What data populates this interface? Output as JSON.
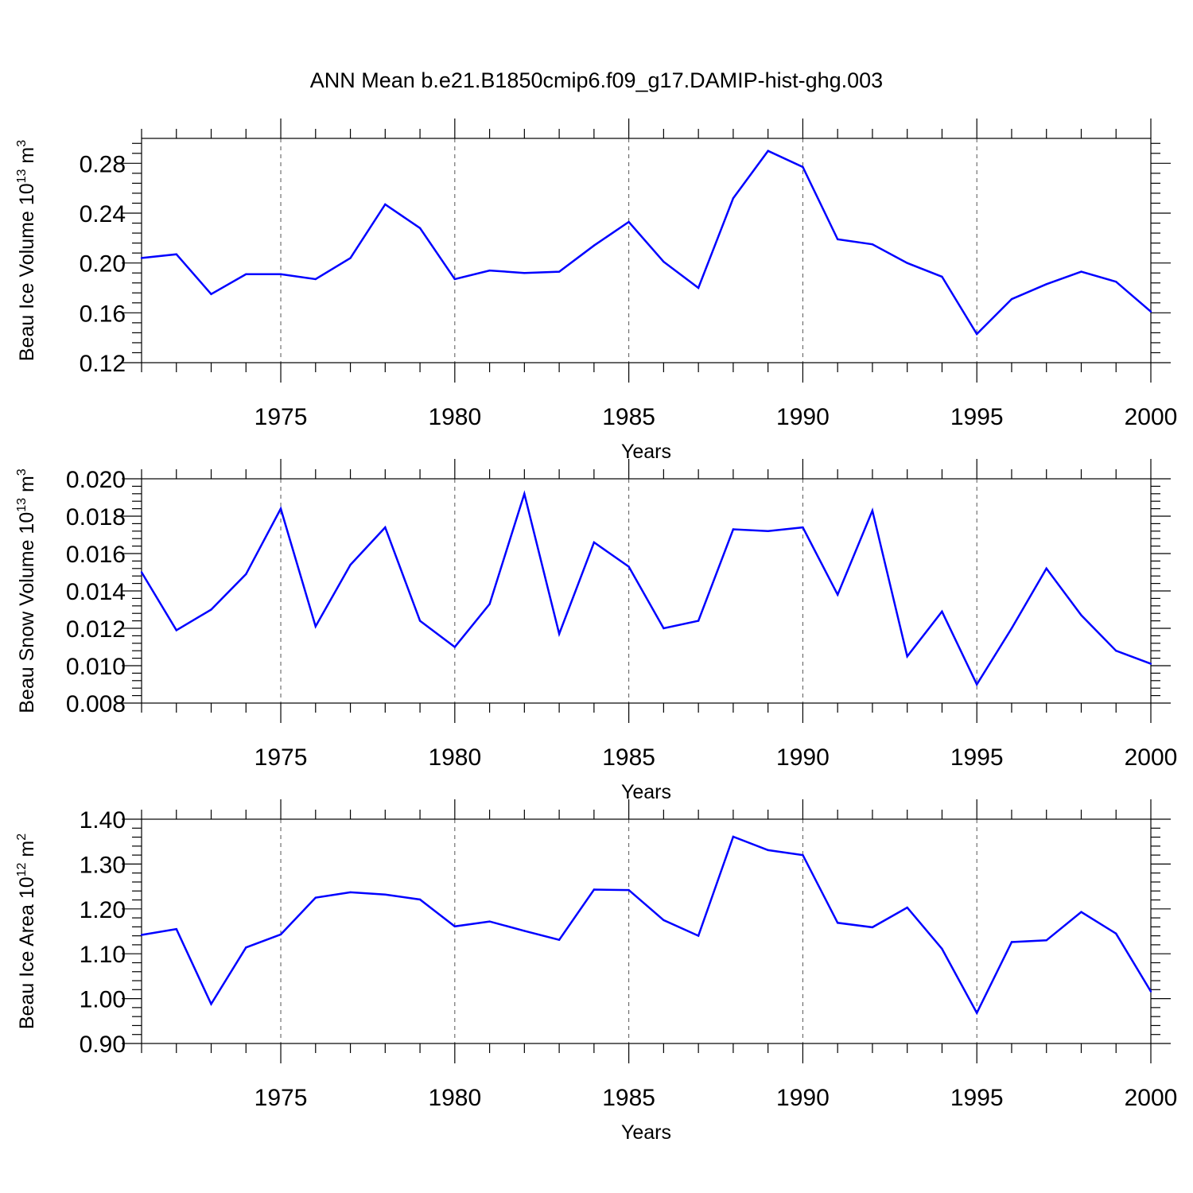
{
  "title": "ANN Mean b.e21.B1850cmip6.f09_g17.DAMIP-hist-ghg.003",
  "colors": {
    "line": "#0000ff",
    "axis": "#000000",
    "grid": "#000000"
  },
  "chart_data": [
    {
      "type": "line",
      "ylabel_main": "Beau Ice Volume 10",
      "ylabel_exp": "13",
      "ylabel_unit": " m",
      "ylabel_unit_exp": "3",
      "xlabel": "Years",
      "xlim": [
        1971,
        2000
      ],
      "ylim": [
        0.12,
        0.3
      ],
      "yticks": [
        0.12,
        0.16,
        0.2,
        0.24,
        0.28
      ],
      "ytick_labels": [
        "0.12",
        "0.16",
        "0.20",
        "0.24",
        "0.28"
      ],
      "xticks": [
        1975,
        1980,
        1985,
        1990,
        1995,
        2000
      ],
      "xtick_labels": [
        "1975",
        "1980",
        "1985",
        "1990",
        "1995",
        "2000"
      ],
      "grid": "vertical dashed at major x ticks",
      "x": [
        1971,
        1972,
        1973,
        1974,
        1975,
        1976,
        1977,
        1978,
        1979,
        1980,
        1981,
        1982,
        1983,
        1984,
        1985,
        1986,
        1987,
        1988,
        1989,
        1990,
        1991,
        1992,
        1993,
        1994,
        1995,
        1996,
        1997,
        1998,
        1999,
        2000
      ],
      "y": [
        0.204,
        0.207,
        0.175,
        0.191,
        0.191,
        0.187,
        0.204,
        0.247,
        0.228,
        0.187,
        0.194,
        0.192,
        0.193,
        0.214,
        0.233,
        0.201,
        0.18,
        0.252,
        0.29,
        0.277,
        0.219,
        0.215,
        0.2,
        0.189,
        0.143,
        0.171,
        0.183,
        0.193,
        0.185,
        0.161
      ]
    },
    {
      "type": "line",
      "ylabel_main": "Beau Snow Volume 10",
      "ylabel_exp": "13",
      "ylabel_unit": " m",
      "ylabel_unit_exp": "3",
      "xlabel": "Years",
      "xlim": [
        1971,
        2000
      ],
      "ylim": [
        0.008,
        0.02
      ],
      "yticks": [
        0.008,
        0.01,
        0.012,
        0.014,
        0.016,
        0.018,
        0.02
      ],
      "ytick_labels": [
        "0.008",
        "0.010",
        "0.012",
        "0.014",
        "0.016",
        "0.018",
        "0.020"
      ],
      "xticks": [
        1975,
        1980,
        1985,
        1990,
        1995,
        2000
      ],
      "xtick_labels": [
        "1975",
        "1980",
        "1985",
        "1990",
        "1995",
        "2000"
      ],
      "grid": "vertical dashed at major x ticks",
      "x": [
        1971,
        1972,
        1973,
        1974,
        1975,
        1976,
        1977,
        1978,
        1979,
        1980,
        1981,
        1982,
        1983,
        1984,
        1985,
        1986,
        1987,
        1988,
        1989,
        1990,
        1991,
        1992,
        1993,
        1994,
        1995,
        1996,
        1997,
        1998,
        1999,
        2000
      ],
      "y": [
        0.015,
        0.0119,
        0.013,
        0.0149,
        0.0184,
        0.0121,
        0.0154,
        0.0174,
        0.0124,
        0.011,
        0.0133,
        0.0192,
        0.0117,
        0.0166,
        0.0153,
        0.012,
        0.0124,
        0.0173,
        0.0172,
        0.0174,
        0.0138,
        0.0183,
        0.0105,
        0.0129,
        0.009,
        0.012,
        0.0152,
        0.0127,
        0.0108,
        0.0101
      ]
    },
    {
      "type": "line",
      "ylabel_main": "Beau Ice Area 10",
      "ylabel_exp": "12",
      "ylabel_unit": " m",
      "ylabel_unit_exp": "2",
      "xlabel": "Years",
      "xlim": [
        1971,
        2000
      ],
      "ylim": [
        0.9,
        1.4
      ],
      "yticks": [
        0.9,
        1.0,
        1.1,
        1.2,
        1.3,
        1.4
      ],
      "ytick_labels": [
        "0.90",
        "1.00",
        "1.10",
        "1.20",
        "1.30",
        "1.40"
      ],
      "xticks": [
        1975,
        1980,
        1985,
        1990,
        1995,
        2000
      ],
      "xtick_labels": [
        "1975",
        "1980",
        "1985",
        "1990",
        "1995",
        "2000"
      ],
      "grid": "vertical dashed at major x ticks",
      "x": [
        1971,
        1972,
        1973,
        1974,
        1975,
        1976,
        1977,
        1978,
        1979,
        1980,
        1981,
        1982,
        1983,
        1984,
        1985,
        1986,
        1987,
        1988,
        1989,
        1990,
        1991,
        1992,
        1993,
        1994,
        1995,
        1996,
        1997,
        1998,
        1999,
        2000
      ],
      "y": [
        1.142,
        1.155,
        0.988,
        1.114,
        1.143,
        1.225,
        1.237,
        1.232,
        1.221,
        1.161,
        1.172,
        1.151,
        1.131,
        1.243,
        1.242,
        1.175,
        1.14,
        1.361,
        1.331,
        1.32,
        1.169,
        1.159,
        1.203,
        1.111,
        0.968,
        1.126,
        1.13,
        1.193,
        1.145,
        1.016
      ]
    }
  ]
}
